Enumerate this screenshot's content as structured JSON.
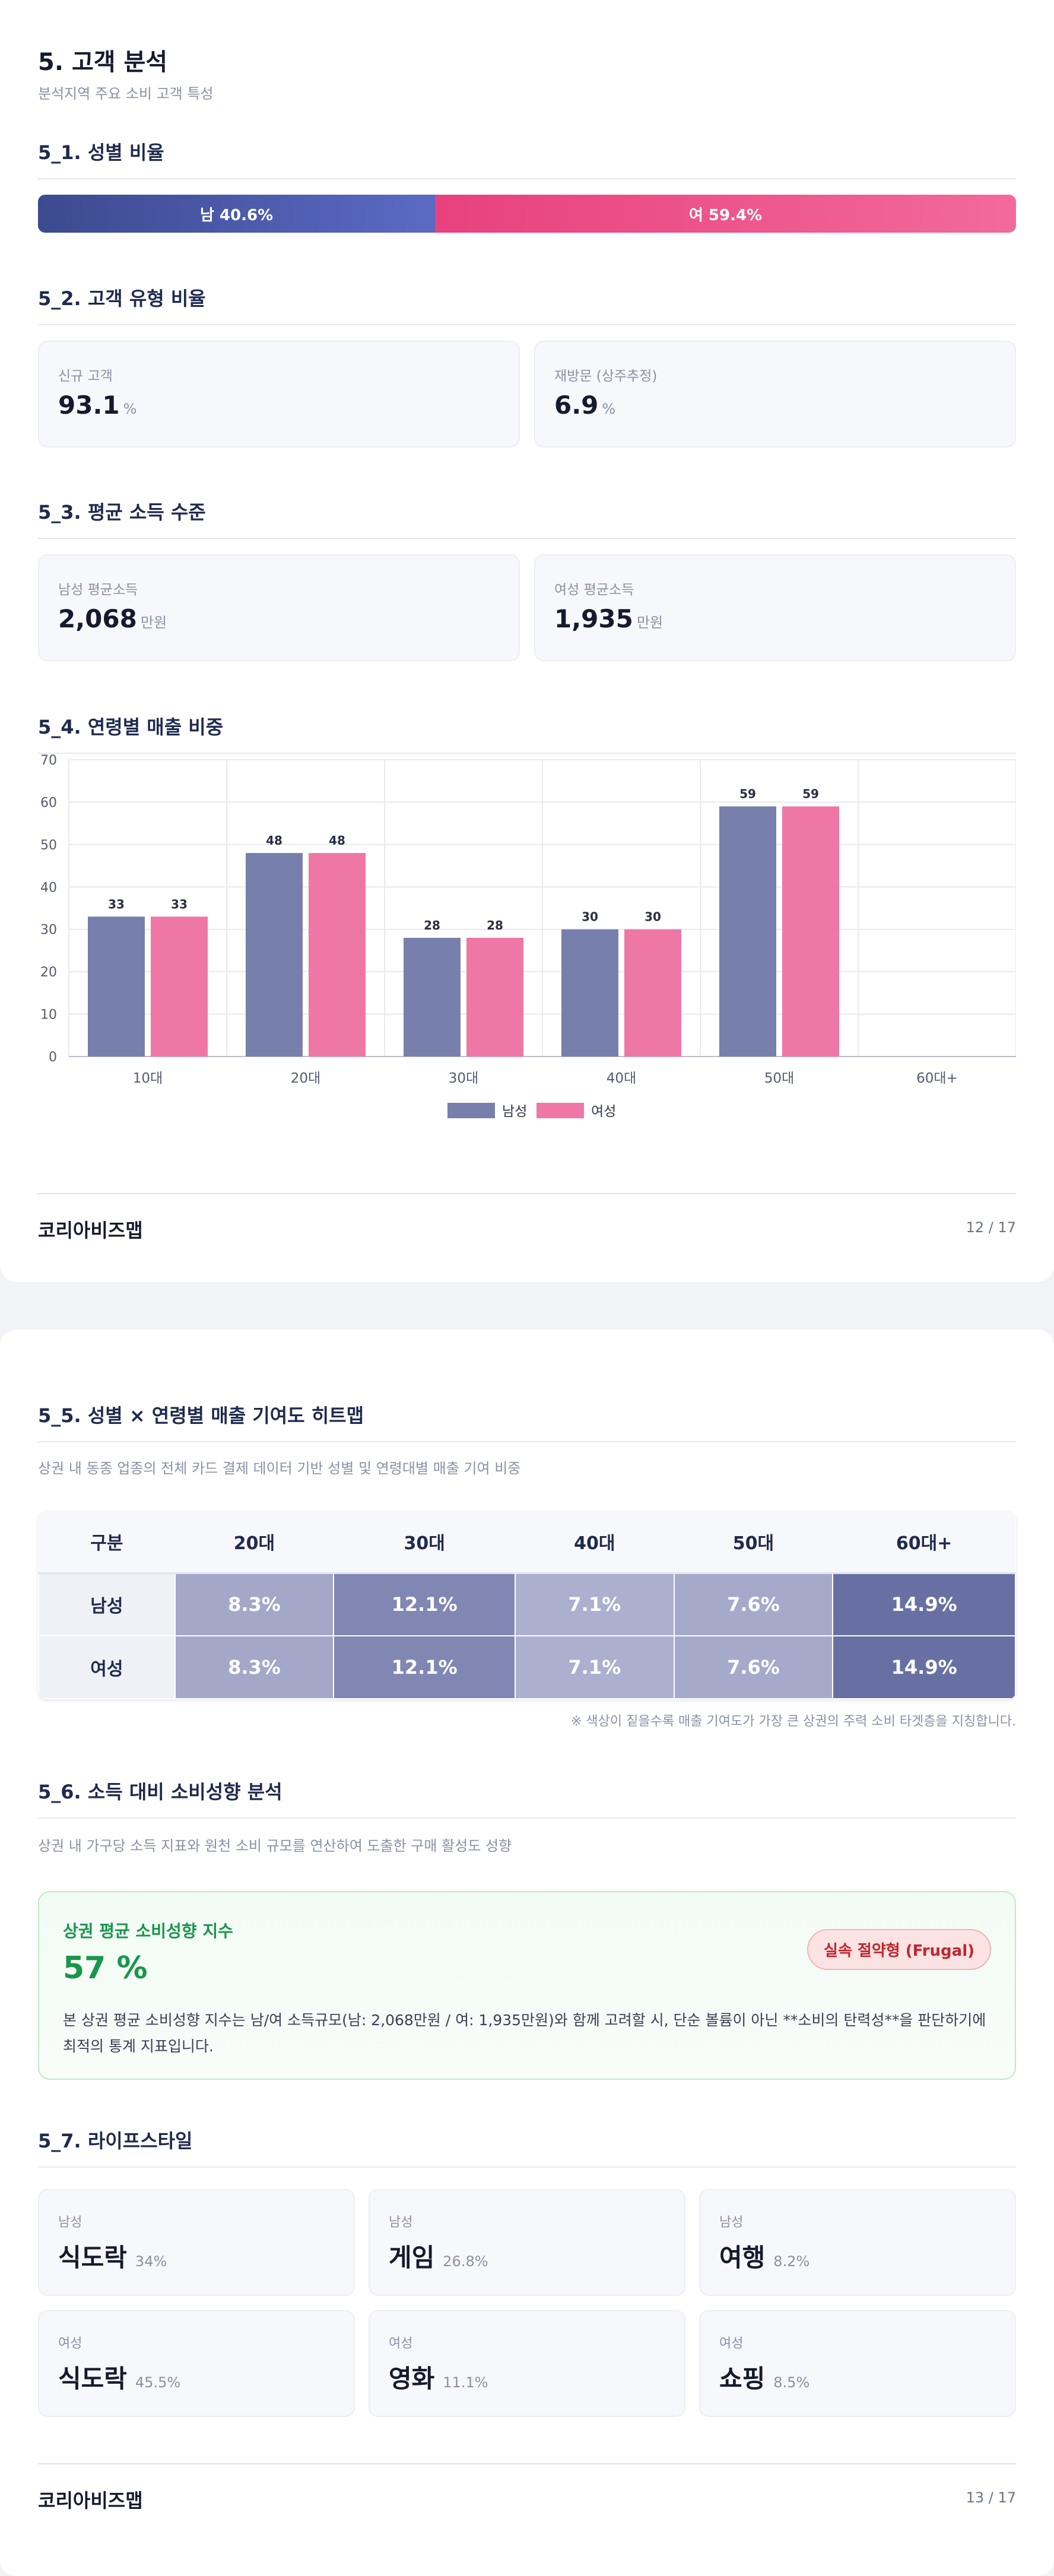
{
  "page1": {
    "title": "5. 고객 분석",
    "subtitle": "분석지역 주요 소비 고객 특성",
    "s1": {
      "heading": "5_1. 성별 비율",
      "male_label": "남 40.6%",
      "female_label": "여 59.4%",
      "male_share": 40.6,
      "female_share": 59.4,
      "colors": {
        "male": "#4a58aa",
        "female": "#ec4f87"
      }
    },
    "s2": {
      "heading": "5_2. 고객 유형 비율",
      "cards": [
        {
          "label": "신규 고객",
          "value": "93.1",
          "unit": "%"
        },
        {
          "label": "재방문 (상주추정)",
          "value": "6.9",
          "unit": "%"
        }
      ]
    },
    "s3": {
      "heading": "5_3. 평균 소득 수준",
      "cards": [
        {
          "label": "남성 평균소득",
          "value": "2,068",
          "unit": "만원"
        },
        {
          "label": "여성 평균소득",
          "value": "1,935",
          "unit": "만원"
        }
      ]
    },
    "s4": {
      "heading": "5_4. 연령별 매출 비중"
    },
    "footer": {
      "brand": "코리아비즈맵",
      "page": "12 / 17"
    }
  },
  "chart_data": {
    "type": "bar",
    "categories": [
      "10대",
      "20대",
      "30대",
      "40대",
      "50대",
      "60대+"
    ],
    "series": [
      {
        "name": "남성",
        "values": [
          33,
          48,
          28,
          30,
          59,
          null
        ],
        "color": "#7780ac"
      },
      {
        "name": "여성",
        "values": [
          33,
          48,
          28,
          30,
          59,
          null
        ],
        "color": "#ef77a6"
      }
    ],
    "ylim": [
      0,
      70
    ],
    "yticks": [
      0,
      10,
      20,
      30,
      40,
      50,
      60,
      70
    ],
    "grid": true,
    "legend": "bottom"
  },
  "page2": {
    "s5": {
      "heading": "5_5. 성별 × 연령별 매출 기여도 히트맵",
      "desc": "상권 내 동종 업종의 전체 카드 결제 데이터 기반 성별 및 연령대별 매출 기여 비중",
      "columns": [
        "구분",
        "20대",
        "30대",
        "40대",
        "50대",
        "60대+"
      ],
      "rows": [
        {
          "label": "남성",
          "cells": [
            "8.3%",
            "12.1%",
            "7.1%",
            "7.6%",
            "14.9%"
          ]
        },
        {
          "label": "여성",
          "cells": [
            "8.3%",
            "12.1%",
            "7.1%",
            "7.6%",
            "14.9%"
          ]
        }
      ],
      "cell_colors": [
        "#a3a8c9",
        "#8087b2",
        "#acb0cf",
        "#a5aacb",
        "#6870a3"
      ],
      "note": "※ 색상이 짙을수록 매출 기여도가 가장 큰 상권의 주력 소비 타겟층을 지칭합니다."
    },
    "s6": {
      "heading": "5_6. 소득 대비 소비성향 분석",
      "desc": "상권 내 가구당 소득 지표와 원천 소비 규모를 연산하여 도출한 구매 활성도 성향",
      "box_title": "상권 평균 소비성향 지수",
      "box_value": "57 %",
      "badge": "실속 절약형 (Frugal)",
      "text": "본 상권 평균 소비성향 지수는 남/여 소득규모(남: 2,068만원 / 여: 1,935만원)와 함께 고려할 시, 단순 볼륨이 아닌 **소비의 탄력성**을 판단하기에 최적의 통계 지표입니다."
    },
    "s7": {
      "heading": "5_7. 라이프스타일",
      "cards": [
        {
          "label": "남성",
          "name": "식도락",
          "pct": "34%"
        },
        {
          "label": "남성",
          "name": "게임",
          "pct": "26.8%"
        },
        {
          "label": "남성",
          "name": "여행",
          "pct": "8.2%"
        },
        {
          "label": "여성",
          "name": "식도락",
          "pct": "45.5%"
        },
        {
          "label": "여성",
          "name": "영화",
          "pct": "11.1%"
        },
        {
          "label": "여성",
          "name": "쇼핑",
          "pct": "8.5%"
        }
      ]
    },
    "footer": {
      "brand": "코리아비즈맵",
      "page": "13 / 17"
    }
  }
}
